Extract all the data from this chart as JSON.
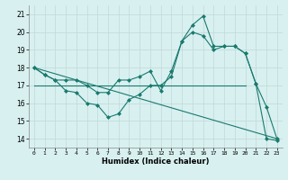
{
  "xlabel": "Humidex (Indice chaleur)",
  "x": [
    0,
    1,
    2,
    3,
    4,
    5,
    6,
    7,
    8,
    9,
    10,
    11,
    12,
    13,
    14,
    15,
    16,
    17,
    18,
    19,
    20,
    21,
    22,
    23
  ],
  "line1": [
    18.0,
    17.6,
    17.3,
    17.3,
    17.3,
    17.0,
    16.6,
    16.6,
    17.3,
    17.3,
    17.5,
    17.8,
    16.7,
    17.8,
    19.5,
    20.4,
    20.9,
    19.2,
    19.2,
    19.2,
    18.8,
    17.1,
    15.8,
    14.0
  ],
  "line2": [
    18.0,
    17.6,
    17.3,
    16.7,
    16.6,
    16.0,
    15.9,
    15.2,
    15.4,
    16.2,
    16.5,
    17.0,
    17.0,
    17.5,
    19.5,
    20.0,
    19.8,
    19.0,
    19.2,
    19.2,
    18.8,
    17.1,
    14.0,
    13.9
  ],
  "line3_x": [
    0,
    23
  ],
  "line3_y": [
    18.0,
    14.0
  ],
  "line4_x": [
    0,
    20
  ],
  "line4_y": [
    17.0,
    17.0
  ],
  "line_color": "#1a7a6e",
  "bg_color": "#d8f0f0",
  "grid_color": "#c0d8d8",
  "ylim": [
    13.5,
    21.5
  ],
  "xlim": [
    -0.5,
    23.5
  ],
  "yticks": [
    14,
    15,
    16,
    17,
    18,
    19,
    20,
    21
  ],
  "xticks": [
    0,
    1,
    2,
    3,
    4,
    5,
    6,
    7,
    8,
    9,
    10,
    11,
    12,
    13,
    14,
    15,
    16,
    17,
    18,
    19,
    20,
    21,
    22,
    23
  ]
}
